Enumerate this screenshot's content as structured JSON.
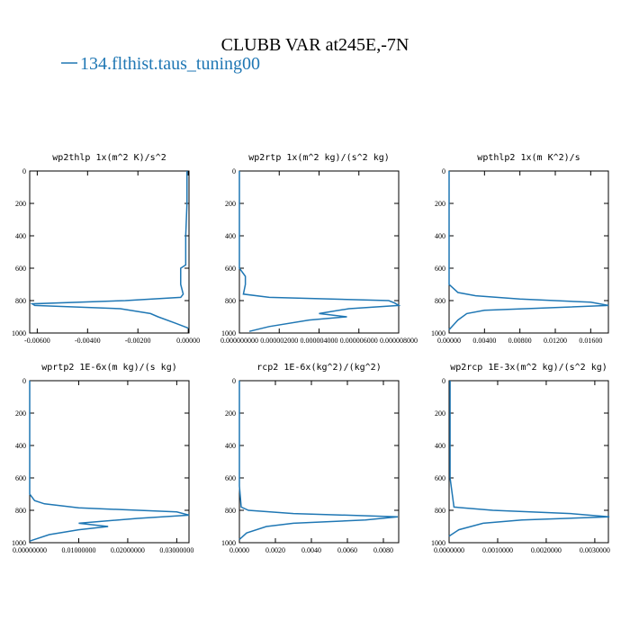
{
  "title": "CLUBB VAR at245E,-7N",
  "legend": {
    "name": "134.flthist.taus_tuning00",
    "color": "#1f77b4"
  },
  "chart_data": [
    {
      "type": "line",
      "title": "wp2thlp  1x(m^2 K)/s^2",
      "y": [
        0,
        200,
        400,
        580,
        600,
        700,
        760,
        780,
        800,
        820,
        830,
        850,
        880,
        900,
        940,
        970
      ],
      "values": [
        -5e-05,
        -5e-05,
        -0.0001,
        -0.0001,
        -0.0003,
        -0.0003,
        -0.0002,
        -0.0003,
        -0.0025,
        -0.0062,
        -0.0061,
        -0.0027,
        -0.0015,
        -0.0012,
        -0.0005,
        0
      ],
      "xlim": [
        -0.0063,
        3e-05
      ],
      "xticks": [
        {
          "value": -0.006,
          "label": "-0.00600"
        },
        {
          "value": -0.004,
          "label": "-0.00400"
        },
        {
          "value": -0.002,
          "label": "-0.00200"
        },
        {
          "value": 0,
          "label": "0.00000"
        }
      ],
      "ylim": [
        1000,
        0
      ],
      "yticks": [
        0,
        200,
        400,
        600,
        800,
        1000
      ]
    },
    {
      "type": "line",
      "title": "wp2rtp  1x(m^2 kg)/(s^2 kg)",
      "y": [
        0,
        600,
        650,
        700,
        760,
        780,
        800,
        815,
        830,
        850,
        880,
        900,
        920,
        960,
        990
      ],
      "values": [
        0,
        0,
        3e-07,
        3e-07,
        2e-07,
        1.5e-06,
        7.5e-06,
        7.8e-06,
        8e-06,
        5.5e-06,
        4e-06,
        5.4e-06,
        3.5e-06,
        1.5e-06,
        5e-07
      ],
      "xlim": [
        0,
        8e-06
      ],
      "xticks": [
        {
          "value": 0,
          "label": "0.000000000"
        },
        {
          "value": 2e-06,
          "label": "0.000002000"
        },
        {
          "value": 4e-06,
          "label": "0.000004000"
        },
        {
          "value": 6e-06,
          "label": "0.000006000"
        },
        {
          "value": 8e-06,
          "label": "0.000008000"
        }
      ],
      "ylim": [
        1000,
        0
      ],
      "yticks": [
        0,
        200,
        400,
        600,
        800,
        1000
      ]
    },
    {
      "type": "line",
      "title": "wpthlp2  1x(m K^2)/s",
      "y": [
        0,
        700,
        750,
        770,
        790,
        810,
        830,
        860,
        880,
        920,
        980
      ],
      "values": [
        0,
        0,
        0.001,
        0.003,
        0.008,
        0.016,
        0.018,
        0.004,
        0.002,
        0.001,
        0
      ],
      "xlim": [
        0,
        0.018
      ],
      "xticks": [
        {
          "value": 0,
          "label": "0.00000"
        },
        {
          "value": 0.004,
          "label": "0.00400"
        },
        {
          "value": 0.008,
          "label": "0.00800"
        },
        {
          "value": 0.012,
          "label": "0.01200"
        },
        {
          "value": 0.016,
          "label": "0.01600"
        }
      ],
      "ylim": [
        1000,
        0
      ],
      "yticks": [
        0,
        200,
        400,
        600,
        800,
        1000
      ]
    },
    {
      "type": "line",
      "title": "wprtp2  1E-6x(m kg)/(s kg)",
      "y": [
        0,
        700,
        740,
        760,
        785,
        810,
        830,
        850,
        880,
        900,
        920,
        950,
        990
      ],
      "values": [
        0,
        0,
        0.001,
        0.003,
        0.01,
        0.03,
        0.0325,
        0.022,
        0.01,
        0.016,
        0.01,
        0.004,
        0
      ],
      "xlim": [
        0,
        0.0325
      ],
      "xticks": [
        {
          "value": 0,
          "label": "0.00000000"
        },
        {
          "value": 0.01,
          "label": "0.01000000"
        },
        {
          "value": 0.02,
          "label": "0.02000000"
        },
        {
          "value": 0.03,
          "label": "0.03000000"
        }
      ],
      "ylim": [
        1000,
        0
      ],
      "yticks": [
        0,
        200,
        400,
        600,
        800,
        1000
      ]
    },
    {
      "type": "line",
      "title": "rcp2  1E-6x(kg^2)/(kg^2)",
      "y": [
        0,
        650,
        780,
        800,
        820,
        840,
        860,
        880,
        900,
        940,
        980
      ],
      "values": [
        0,
        0,
        0.0001,
        0.0005,
        0.003,
        0.0088,
        0.007,
        0.003,
        0.0015,
        0.0004,
        0
      ],
      "xlim": [
        0,
        0.00885
      ],
      "xticks": [
        {
          "value": 0,
          "label": "0.0000"
        },
        {
          "value": 0.002,
          "label": "0.0020"
        },
        {
          "value": 0.004,
          "label": "0.0040"
        },
        {
          "value": 0.006,
          "label": "0.0060"
        },
        {
          "value": 0.008,
          "label": "0.0080"
        }
      ],
      "ylim": [
        1000,
        0
      ],
      "yticks": [
        0,
        200,
        400,
        600,
        800,
        1000
      ]
    },
    {
      "type": "line",
      "title": "wp2rcp  1E-3x(m^2 kg)/(s^2 kg)",
      "y": [
        0,
        600,
        780,
        800,
        820,
        840,
        860,
        880,
        920,
        960
      ],
      "values": [
        2e-05,
        2e-05,
        0.0001,
        0.0009,
        0.0025,
        0.0033,
        0.0015,
        0.0007,
        0.0002,
        0
      ],
      "xlim": [
        0,
        0.00328
      ],
      "xticks": [
        {
          "value": 0,
          "label": "0.0000000"
        },
        {
          "value": 0.001,
          "label": "0.0010000"
        },
        {
          "value": 0.002,
          "label": "0.0020000"
        },
        {
          "value": 0.003,
          "label": "0.0030000"
        }
      ],
      "ylim": [
        1000,
        0
      ],
      "yticks": [
        0,
        200,
        400,
        600,
        800,
        1000
      ]
    }
  ]
}
